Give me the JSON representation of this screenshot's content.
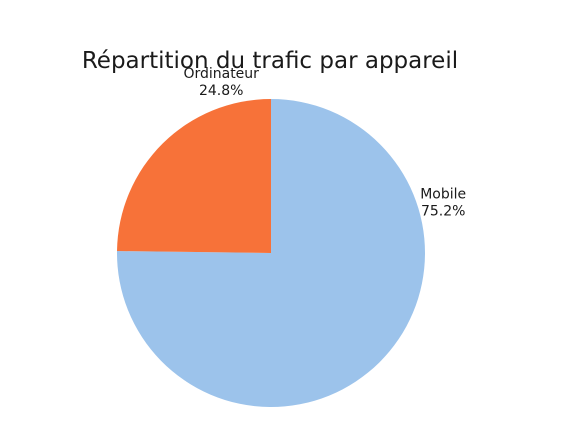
{
  "chart_data": {
    "type": "pie",
    "title": "Répartition du trafic par appareil",
    "slices": [
      {
        "label": "Mobile",
        "value": 75.2,
        "value_label": "75.2%",
        "color": "#9cc3eb"
      },
      {
        "label": "Ordinateur",
        "value": 24.8,
        "value_label": "24.8%",
        "color": "#f77239"
      }
    ],
    "start_angle": "12 o'clock",
    "direction": "clockwise",
    "legend": "none"
  }
}
